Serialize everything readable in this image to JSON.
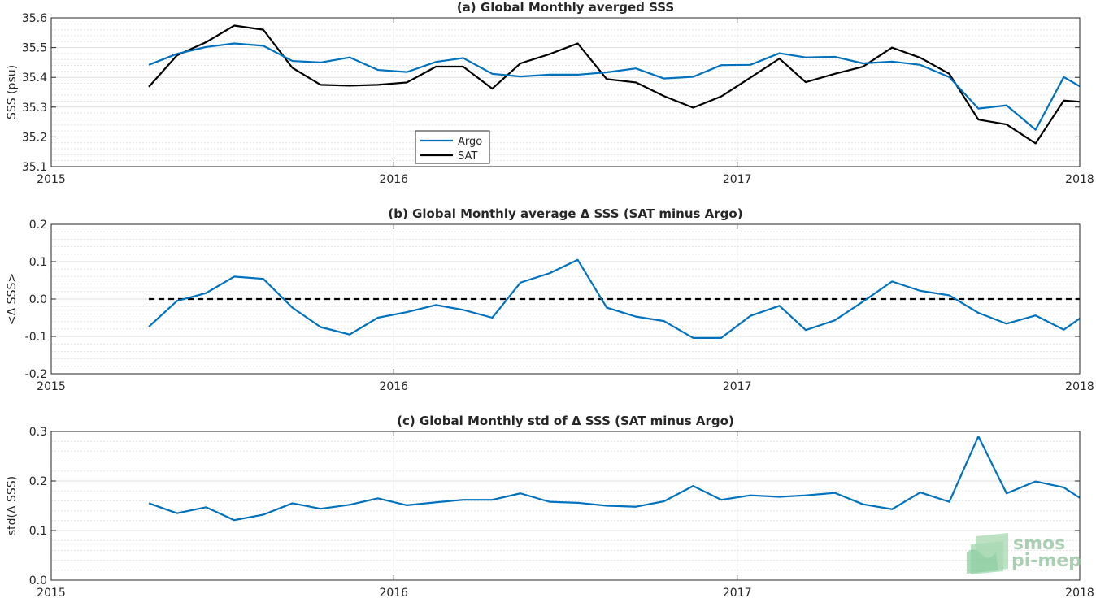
{
  "chart_data": [
    {
      "type": "line",
      "title": "(a) Global Monthly averged SSS",
      "xlabel": "",
      "ylabel": "SSS (psu)",
      "xlim": [
        "2015-01-01",
        "2018-01-01"
      ],
      "ylim": [
        35.1,
        35.6
      ],
      "xticks": [
        "2015",
        "2016",
        "2017",
        "2018"
      ],
      "yticks": [
        35.1,
        35.2,
        35.3,
        35.4,
        35.5,
        35.6
      ],
      "grid": true,
      "legend": "bottom-left",
      "x": [
        "2015-04-15",
        "2015-05-15",
        "2015-06-15",
        "2015-07-15",
        "2015-08-15",
        "2015-09-15",
        "2015-10-15",
        "2015-11-15",
        "2015-12-15",
        "2016-01-15",
        "2016-02-15",
        "2016-03-15",
        "2016-04-15",
        "2016-05-15",
        "2016-06-15",
        "2016-07-15",
        "2016-08-15",
        "2016-09-15",
        "2016-10-15",
        "2016-11-15",
        "2016-12-15",
        "2017-01-15",
        "2017-02-15",
        "2017-03-15",
        "2017-04-15",
        "2017-05-15",
        "2017-06-15",
        "2017-07-15",
        "2017-08-15",
        "2017-09-15",
        "2017-10-15",
        "2017-11-15",
        "2017-12-15",
        "2018-01-01"
      ],
      "series": [
        {
          "name": "Argo",
          "color": "#0072bd",
          "values": [
            35.442,
            35.479,
            35.502,
            35.514,
            35.506,
            35.455,
            35.45,
            35.467,
            35.425,
            35.418,
            35.452,
            35.465,
            35.412,
            35.403,
            35.409,
            35.409,
            35.417,
            35.43,
            35.396,
            35.402,
            35.441,
            35.442,
            35.481,
            35.467,
            35.469,
            35.447,
            35.453,
            35.442,
            35.401,
            35.295,
            35.306,
            35.224,
            35.401,
            35.37
          ]
        },
        {
          "name": "SAT",
          "color": "#000000",
          "values": [
            35.368,
            35.474,
            35.518,
            35.574,
            35.56,
            35.432,
            35.375,
            35.372,
            35.375,
            35.383,
            35.436,
            35.436,
            35.362,
            35.447,
            35.478,
            35.514,
            35.394,
            35.383,
            35.337,
            35.298,
            35.336,
            35.399,
            35.463,
            35.384,
            35.412,
            35.436,
            35.5,
            35.466,
            35.412,
            35.258,
            35.242,
            35.178,
            35.322,
            35.318
          ]
        }
      ]
    },
    {
      "type": "line",
      "title": "(b) Global Monthly average Δ SSS (SAT minus Argo)",
      "xlabel": "",
      "ylabel": "<Δ SSS>",
      "xlim": [
        "2015-01-01",
        "2018-01-01"
      ],
      "ylim": [
        -0.2,
        0.2
      ],
      "xticks": [
        "2015",
        "2016",
        "2017",
        "2018"
      ],
      "yticks": [
        -0.2,
        -0.1,
        0,
        0.1,
        0.2
      ],
      "grid": true,
      "reference_line": {
        "y": 0,
        "style": "dashed",
        "color": "#000000"
      },
      "x": [
        "2015-04-15",
        "2015-05-15",
        "2015-06-15",
        "2015-07-15",
        "2015-08-15",
        "2015-09-15",
        "2015-10-15",
        "2015-11-15",
        "2015-12-15",
        "2016-01-15",
        "2016-02-15",
        "2016-03-15",
        "2016-04-15",
        "2016-05-15",
        "2016-06-15",
        "2016-07-15",
        "2016-08-15",
        "2016-09-15",
        "2016-10-15",
        "2016-11-15",
        "2016-12-15",
        "2017-01-15",
        "2017-02-15",
        "2017-03-15",
        "2017-04-15",
        "2017-05-15",
        "2017-06-15",
        "2017-07-15",
        "2017-08-15",
        "2017-09-15",
        "2017-10-15",
        "2017-11-15",
        "2017-12-15",
        "2018-01-01"
      ],
      "series": [
        {
          "color": "#0072bd",
          "values": [
            -0.074,
            -0.005,
            0.016,
            0.06,
            0.054,
            -0.023,
            -0.075,
            -0.095,
            -0.05,
            -0.035,
            -0.016,
            -0.029,
            -0.05,
            0.044,
            0.069,
            0.105,
            -0.023,
            -0.047,
            -0.059,
            -0.104,
            -0.104,
            -0.045,
            -0.018,
            -0.083,
            -0.057,
            -0.007,
            0.047,
            0.022,
            0.01,
            -0.037,
            -0.066,
            -0.044,
            -0.082,
            -0.052
          ]
        }
      ]
    },
    {
      "type": "line",
      "title": "(c) Global Monthly std of Δ SSS (SAT minus Argo)",
      "xlabel": "",
      "ylabel": "std(Δ SSS)",
      "xlim": [
        "2015-01-01",
        "2018-01-01"
      ],
      "ylim": [
        0,
        0.3
      ],
      "xticks": [
        "2015",
        "2016",
        "2017",
        "2018"
      ],
      "yticks": [
        0,
        0.1,
        0.2,
        0.3
      ],
      "grid": true,
      "x": [
        "2015-04-15",
        "2015-05-15",
        "2015-06-15",
        "2015-07-15",
        "2015-08-15",
        "2015-09-15",
        "2015-10-15",
        "2015-11-15",
        "2015-12-15",
        "2016-01-15",
        "2016-02-15",
        "2016-03-15",
        "2016-04-15",
        "2016-05-15",
        "2016-06-15",
        "2016-07-15",
        "2016-08-15",
        "2016-09-15",
        "2016-10-15",
        "2016-11-15",
        "2016-12-15",
        "2017-01-15",
        "2017-02-15",
        "2017-03-15",
        "2017-04-15",
        "2017-05-15",
        "2017-06-15",
        "2017-07-15",
        "2017-08-15",
        "2017-09-15",
        "2017-10-15",
        "2017-11-15",
        "2017-12-15",
        "2018-01-01"
      ],
      "series": [
        {
          "color": "#0072bd",
          "values": [
            0.155,
            0.135,
            0.147,
            0.121,
            0.132,
            0.155,
            0.144,
            0.152,
            0.165,
            0.151,
            0.157,
            0.162,
            0.162,
            0.175,
            0.158,
            0.156,
            0.15,
            0.148,
            0.159,
            0.19,
            0.162,
            0.171,
            0.168,
            0.171,
            0.176,
            0.153,
            0.143,
            0.177,
            0.158,
            0.29,
            0.175,
            0.199,
            0.187,
            0.166
          ]
        }
      ]
    }
  ],
  "logo": {
    "line1": "smos",
    "line2": "pi-mep",
    "icon": "wave-layers-icon",
    "color": "#8fbf9a"
  }
}
